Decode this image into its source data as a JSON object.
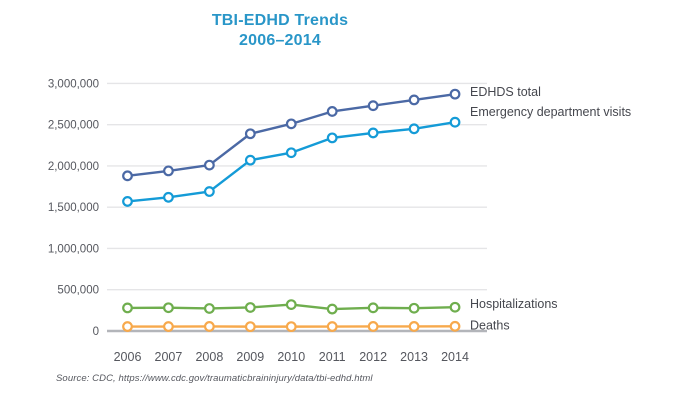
{
  "title": {
    "line1": "TBI-EDHD Trends",
    "line2": "2006–2014"
  },
  "source_note": "Source: CDC, https://www.cdc.gov/traumaticbraininjury/data/tbi-edhd.html",
  "colors": {
    "title_text": "#2996C8",
    "axis_text": "#55575E",
    "legend_text": "#45474E",
    "gridline": "#E5E5E7",
    "zero_line": "#B3B5BA",
    "marker_fill": "#FFFFFF",
    "source_text": "#56585F"
  },
  "chart_data": {
    "type": "line",
    "title": "TBI-EDHD Trends 2006–2014",
    "xlabel": "",
    "ylabel": "",
    "x": [
      "2006",
      "2007",
      "2008",
      "2009",
      "2010",
      "2011",
      "2012",
      "2013",
      "2014"
    ],
    "series": [
      {
        "name": "EDHDS total",
        "color": "#4B69A5",
        "values": [
          1880000,
          1940000,
          2010000,
          2390000,
          2510000,
          2660000,
          2730000,
          2800000,
          2870000
        ],
        "label_dy": -2
      },
      {
        "name": "Emergency department visits",
        "color": "#149BD7",
        "values": [
          1570000,
          1620000,
          1690000,
          2070000,
          2160000,
          2340000,
          2400000,
          2450000,
          2530000
        ],
        "label_dy": -10
      },
      {
        "name": "Hospitalizations",
        "color": "#6FAE4E",
        "values": [
          280000,
          282000,
          273000,
          285000,
          320000,
          266000,
          281000,
          276000,
          288000
        ],
        "label_dy": -3
      },
      {
        "name": "Deaths",
        "color": "#F7A94C",
        "values": [
          54000,
          54000,
          55000,
          53000,
          53000,
          54000,
          55000,
          55000,
          57000
        ],
        "label_dy": -1
      }
    ],
    "ylim": [
      0,
      3000000
    ],
    "yticks": [
      0,
      500000,
      1000000,
      1500000,
      2000000,
      2500000,
      3000000
    ],
    "ytick_labels": [
      "0",
      "500,000",
      "1,000,000",
      "1,500,000",
      "2,000,000",
      "2,500,000",
      "3,000,000"
    ],
    "grid": true,
    "legend_position": "right-of-line-ends"
  }
}
